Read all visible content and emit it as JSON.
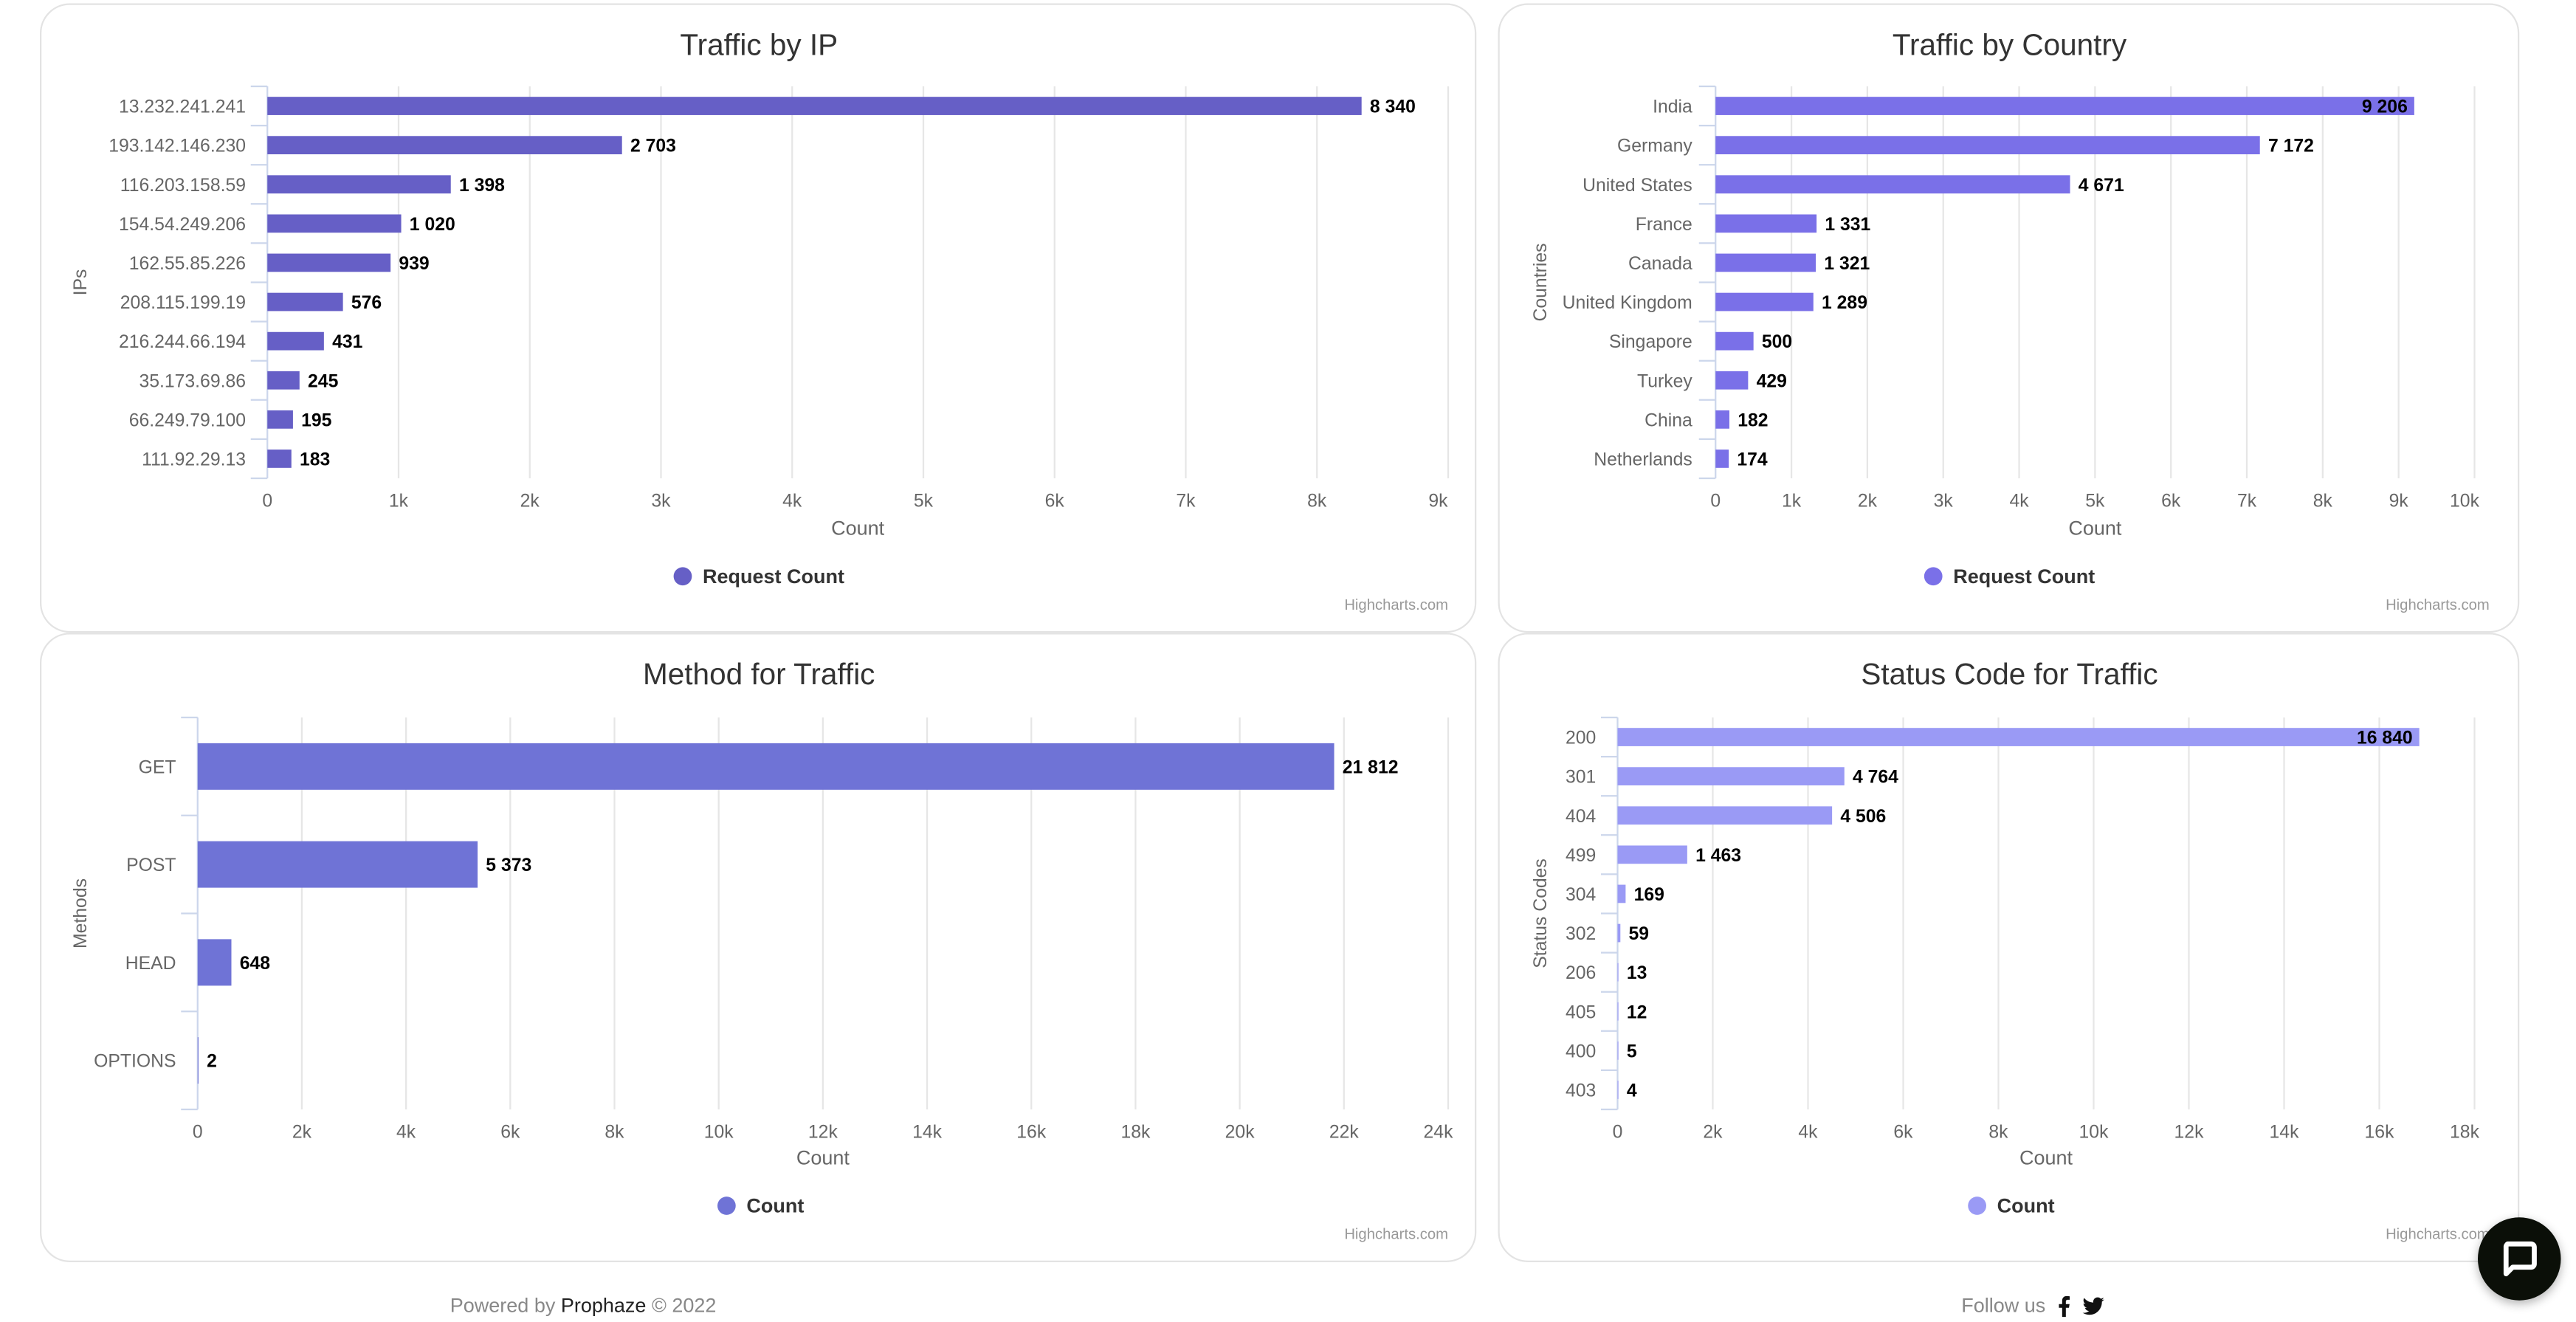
{
  "charts": [
    {
      "chart_data": {
        "type": "bar",
        "orientation": "horizontal",
        "title": "Traffic by IP",
        "xlabel": "Count",
        "ylabel": "IPs",
        "categories": [
          "13.232.241.241",
          "193.142.146.230",
          "116.203.158.59",
          "154.54.249.206",
          "162.55.85.226",
          "208.115.199.19",
          "216.244.66.194",
          "35.173.69.86",
          "66.249.79.100",
          "111.92.29.13"
        ],
        "series": [
          {
            "name": "Request Count",
            "values": [
              8340,
              2703,
              1398,
              1020,
              939,
              576,
              431,
              245,
              195,
              183
            ]
          }
        ],
        "xlim": [
          0,
          9000
        ],
        "ticks": [
          "0",
          "1k",
          "2k",
          "3k",
          "4k",
          "5k",
          "6k",
          "7k",
          "8k",
          "9k"
        ],
        "grid": true,
        "legend": "bottom",
        "color": "#665fc6"
      },
      "credit": "Highcharts.com"
    },
    {
      "chart_data": {
        "type": "bar",
        "orientation": "horizontal",
        "title": "Traffic by Country",
        "xlabel": "Count",
        "ylabel": "Countries",
        "categories": [
          "India",
          "Germany",
          "United States",
          "France",
          "Canada",
          "United Kingdom",
          "Singapore",
          "Turkey",
          "China",
          "Netherlands"
        ],
        "series": [
          {
            "name": "Request Count",
            "values": [
              9206,
              7172,
              4671,
              1331,
              1321,
              1289,
              500,
              429,
              182,
              174
            ]
          }
        ],
        "xlim": [
          0,
          10000
        ],
        "ticks": [
          "0",
          "1k",
          "2k",
          "3k",
          "4k",
          "5k",
          "6k",
          "7k",
          "8k",
          "9k",
          "10k"
        ],
        "grid": true,
        "legend": "bottom",
        "color": "#7a70e8"
      },
      "credit": "Highcharts.com"
    },
    {
      "chart_data": {
        "type": "bar",
        "orientation": "horizontal",
        "title": "Method for Traffic",
        "xlabel": "Count",
        "ylabel": "Methods",
        "categories": [
          "GET",
          "POST",
          "HEAD",
          "OPTIONS"
        ],
        "series": [
          {
            "name": "Count",
            "values": [
              21812,
              5373,
              648,
              2
            ]
          }
        ],
        "xlim": [
          0,
          24000
        ],
        "ticks": [
          "0",
          "2k",
          "4k",
          "6k",
          "8k",
          "10k",
          "12k",
          "14k",
          "16k",
          "18k",
          "20k",
          "22k",
          "24k"
        ],
        "grid": true,
        "legend": "bottom",
        "color": "#6f73d6"
      },
      "credit": "Highcharts.com"
    },
    {
      "chart_data": {
        "type": "bar",
        "orientation": "horizontal",
        "title": "Status Code for Traffic",
        "xlabel": "Count",
        "ylabel": "Status Codes",
        "categories": [
          "200",
          "301",
          "404",
          "499",
          "304",
          "302",
          "206",
          "405",
          "400",
          "403"
        ],
        "series": [
          {
            "name": "Count",
            "values": [
              16840,
              4764,
              4506,
              1463,
              169,
              59,
              13,
              12,
              5,
              4
            ]
          }
        ],
        "xlim": [
          0,
          18000
        ],
        "ticks": [
          "0",
          "2k",
          "4k",
          "6k",
          "8k",
          "10k",
          "12k",
          "14k",
          "16k",
          "18k"
        ],
        "grid": true,
        "legend": "bottom",
        "color": "#9a9af5"
      },
      "credit": "Highcharts.com"
    }
  ],
  "footer": {
    "powered_prefix": "Powered by",
    "brand": "Prophaze",
    "copyright": "© 2022",
    "follow": "Follow us",
    "social_icons": [
      "facebook-icon",
      "twitter-icon"
    ]
  },
  "chat": {
    "icon": "chat-bubble-icon"
  }
}
